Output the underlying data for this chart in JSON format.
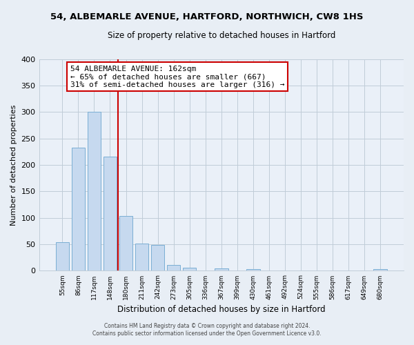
{
  "title": "54, ALBEMARLE AVENUE, HARTFORD, NORTHWICH, CW8 1HS",
  "subtitle": "Size of property relative to detached houses in Hartford",
  "xlabel": "Distribution of detached houses by size in Hartford",
  "ylabel": "Number of detached properties",
  "categories": [
    "55sqm",
    "86sqm",
    "117sqm",
    "148sqm",
    "180sqm",
    "211sqm",
    "242sqm",
    "273sqm",
    "305sqm",
    "336sqm",
    "367sqm",
    "399sqm",
    "430sqm",
    "461sqm",
    "492sqm",
    "524sqm",
    "555sqm",
    "586sqm",
    "617sqm",
    "649sqm",
    "680sqm"
  ],
  "values": [
    54,
    233,
    300,
    215,
    103,
    52,
    49,
    11,
    6,
    0,
    4,
    0,
    3,
    0,
    0,
    0,
    0,
    0,
    0,
    0,
    3
  ],
  "bar_color": "#c6d9ef",
  "bar_edge_color": "#7aaed4",
  "property_line_x": 3.5,
  "ann_line1": "54 ALBEMARLE AVENUE: 162sqm",
  "ann_line2": "← 65% of detached houses are smaller (667)",
  "ann_line3": "31% of semi-detached houses are larger (316) →",
  "annotation_box_color": "#ffffff",
  "annotation_box_edge": "#cc0000",
  "vline_color": "#cc0000",
  "ylim": [
    0,
    400
  ],
  "yticks": [
    0,
    50,
    100,
    150,
    200,
    250,
    300,
    350,
    400
  ],
  "footer1": "Contains HM Land Registry data © Crown copyright and database right 2024.",
  "footer2": "Contains public sector information licensed under the Open Government Licence v3.0.",
  "bg_color": "#e8eef5",
  "plot_bg_color": "#eaf0f8",
  "grid_color": "#c0ccd8"
}
